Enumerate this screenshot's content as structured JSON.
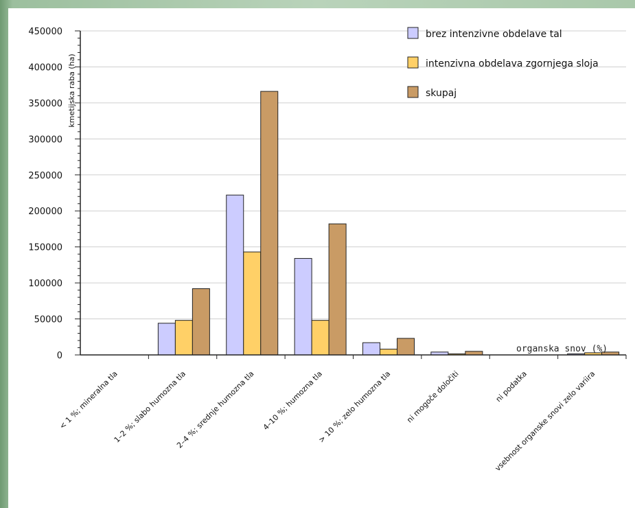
{
  "chart_data": {
    "type": "bar",
    "title": "",
    "ylabel": "kmetijska raba (ha)",
    "xlabel": "organska snov (%)",
    "ylim": [
      0,
      450000
    ],
    "yticks": [
      0,
      50000,
      100000,
      150000,
      200000,
      250000,
      300000,
      350000,
      400000,
      450000
    ],
    "grid": true,
    "legend_position": "top-right",
    "categories": [
      "< 1 %; mineralna tla",
      "1–2 %; slabo humozna tla",
      "2–4 %; srednje humozna tla",
      "4–10 %; humozna tla",
      "> 10 %; zelo humozna tla",
      "ni mogoče določiti",
      "ni podatka",
      "vsebnost organske snovi zelo variira"
    ],
    "series": [
      {
        "name": "brez intenzivne obdelave tal",
        "color": "#ccccff",
        "values": [
          0,
          44000,
          222000,
          134000,
          17000,
          4000,
          0,
          1500
        ]
      },
      {
        "name": "intenzivna obdelava zgornjega sloja",
        "color": "#ffd067",
        "values": [
          0,
          48000,
          143000,
          48000,
          8000,
          1500,
          0,
          3000
        ]
      },
      {
        "name": "skupaj",
        "color": "#c99b65",
        "values": [
          0,
          92000,
          366000,
          182000,
          23000,
          5000,
          0,
          4000
        ]
      }
    ]
  }
}
